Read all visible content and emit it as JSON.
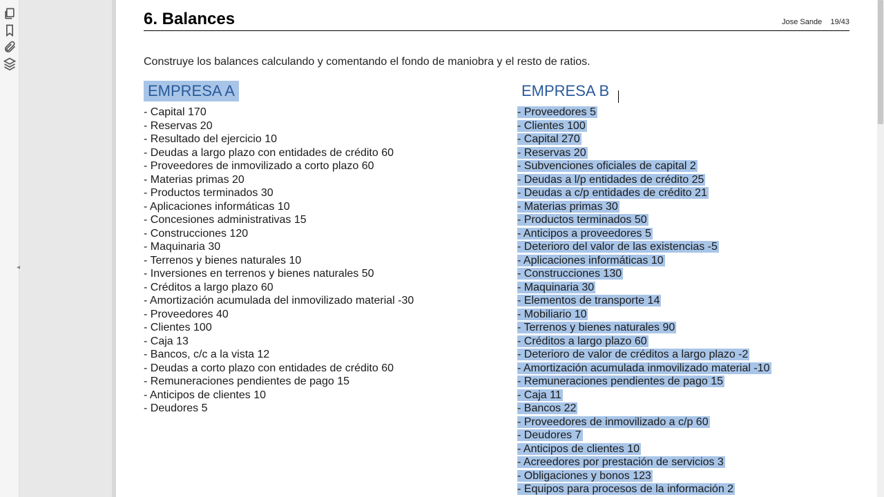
{
  "colors": {
    "highlight": "#a8c5e8",
    "heading_text": "#2a5a9a",
    "body_text": "#1a1a1a",
    "page_bg": "#ffffff",
    "sidebar_bg": "#e8e8e8",
    "toolbar_bg": "#f5f5f5"
  },
  "page": {
    "section_title": "6. Balances",
    "author": "Jose Sande",
    "page_indicator": "19/43",
    "instruction": "Construye los balances calculando y comentando el fondo de maniobra y el resto de ratios."
  },
  "company_a": {
    "heading": "EMPRESA  A",
    "highlighted": true,
    "items": [
      "- Capital 170",
      "- Reservas  20",
      "- Resultado del ejercicio  10",
      "- Deudas a largo plazo con entidades de crédito  60",
      "- Proveedores de inmovilizado a corto  plazo  60",
      "- Materias primas   20",
      "- Productos terminados 30",
      "- Aplicaciones informáticas  10",
      "- Concesiones administrativas 15",
      "- Construcciones  120",
      "- Maquinaria  30",
      "- Terrenos y bienes naturales  10",
      "- Inversiones en terrenos y bienes naturales  50",
      "- Créditos a largo plazo 60",
      "- Amortización acumulada del inmovilizado material  -30",
      "- Proveedores 40",
      "- Clientes 100",
      "- Caja  13",
      "- Bancos, c/c a la vista  12",
      "- Deudas a corto plazo con entidades de crédito  60",
      "- Remuneraciones pendientes de pago 15",
      "- Anticipos de clientes 10",
      "- Deudores 5"
    ]
  },
  "company_b": {
    "heading": "EMPRESA  B",
    "highlighted": false,
    "items_highlighted": true,
    "items": [
      "- Proveedores 5",
      "- Clientes 100",
      "- Capital  270",
      "- Reservas 20",
      "- Subvenciones oficiales de capital 2",
      "- Deudas a l/p entidades de crédito  25",
      "- Deudas a c/p entidades de crédito  21",
      "- Materias primas 30",
      "- Productos terminados 50",
      "- Anticipos a proveedores 5",
      "- Deterioro del valor de las existencias  -5",
      "- Aplicaciones informáticas 10",
      "- Construcciones 130",
      "- Maquinaria 30",
      "- Elementos de transporte 14",
      "- Mobiliario 10",
      "- Terrenos y bienes naturales 90",
      "- Créditos a largo plazo 60",
      "- Deterioro de valor de créditos a largo plazo  -2",
      "- Amortización acumulada inmovilizado material -10",
      "- Remuneraciones pendientes de pago 15",
      "- Caja 11",
      "- Bancos 22",
      "- Proveedores de inmovilizado a c/p  60",
      "- Deudores 7",
      "- Anticipos de clientes 10",
      "- Acreedores por prestación de servicios 3",
      "- Obligaciones y bonos 123",
      "- Equipos para procesos de la información  2"
    ]
  },
  "toolbar_icons": [
    "pages-icon",
    "bookmark-icon",
    "attachment-icon",
    "layers-icon"
  ]
}
